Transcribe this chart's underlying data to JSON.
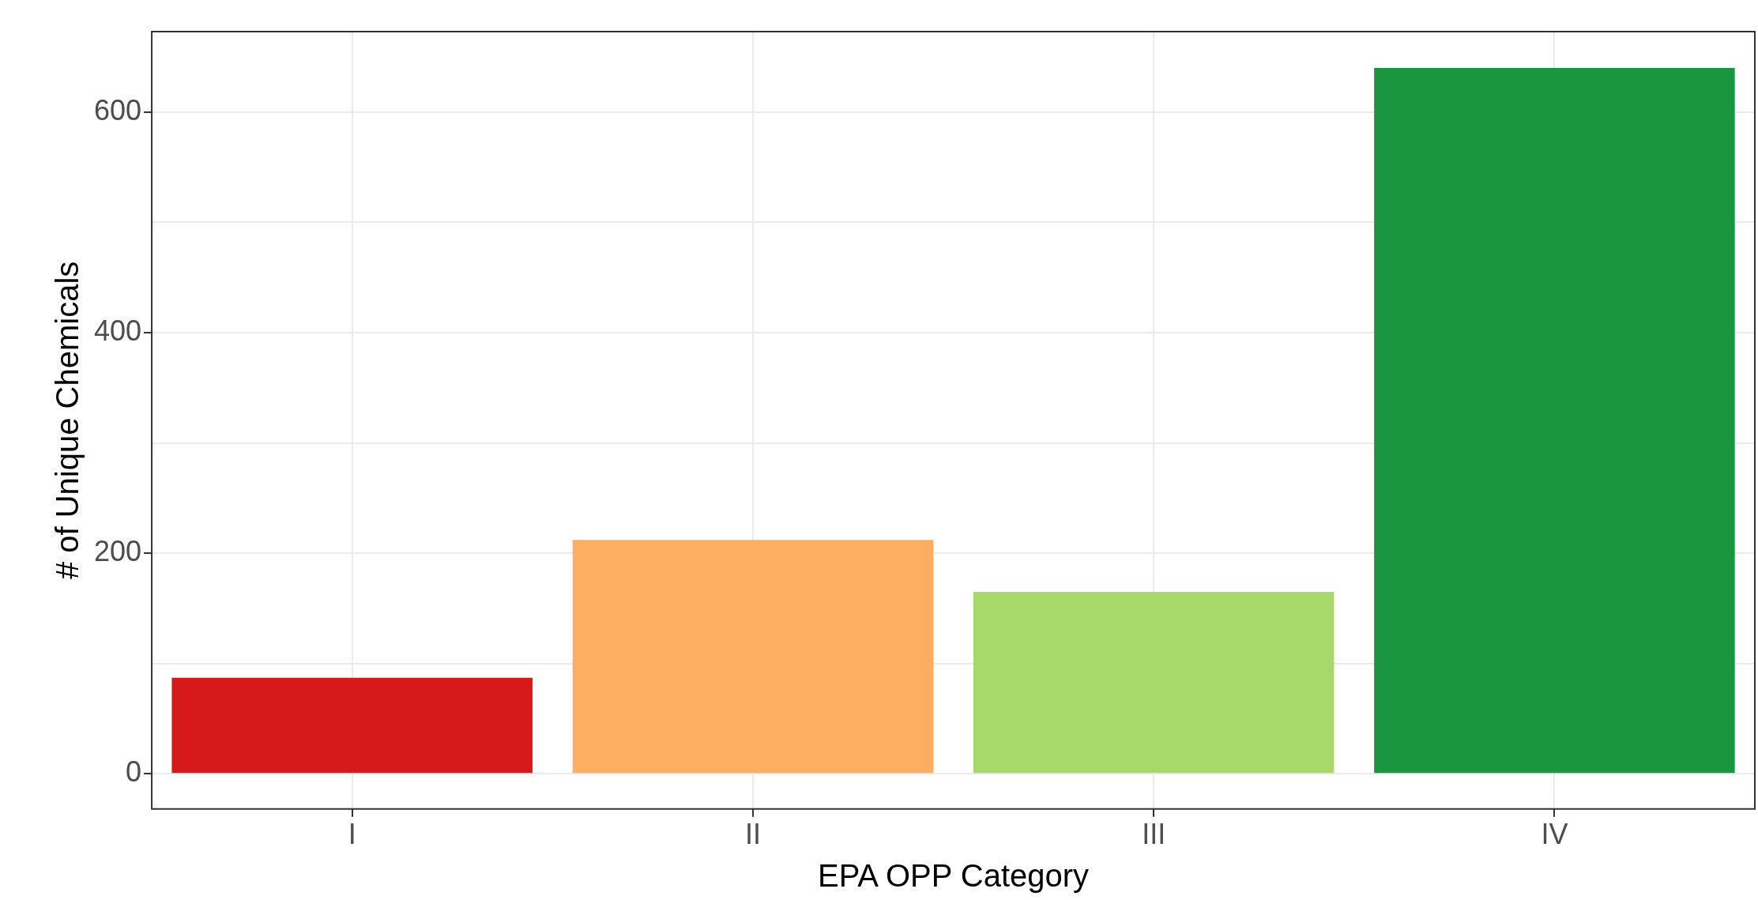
{
  "chart_data": {
    "type": "bar",
    "xlabel": "EPA OPP Category",
    "ylabel": "# of Unique Chemicals",
    "categories": [
      "I",
      "II",
      "III",
      "IV"
    ],
    "values": [
      87,
      212,
      165,
      640
    ],
    "colors": [
      "#d7191c",
      "#fdae61",
      "#a6d96a",
      "#1a9641"
    ],
    "ylim": [
      -32,
      673
    ],
    "yticks": [
      0,
      {
        "value": 100,
        "label": null
      },
      200,
      {
        "value": 300,
        "label": null
      },
      400,
      {
        "value": 500,
        "label": null
      },
      600
    ],
    "grid": true,
    "legend": false
  }
}
